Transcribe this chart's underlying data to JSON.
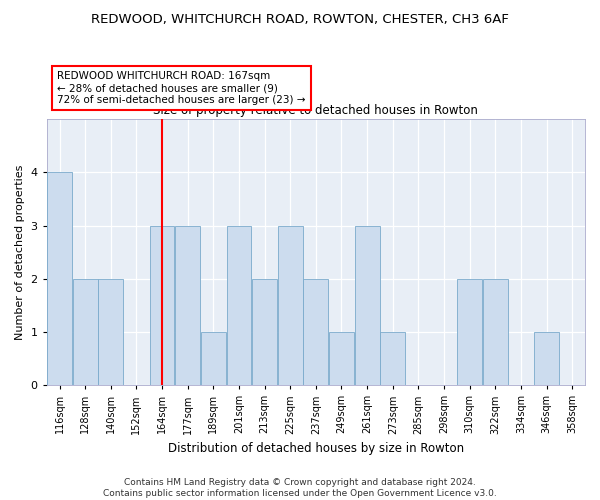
{
  "title": "REDWOOD, WHITCHURCH ROAD, ROWTON, CHESTER, CH3 6AF",
  "subtitle": "Size of property relative to detached houses in Rowton",
  "xlabel": "Distribution of detached houses by size in Rowton",
  "ylabel": "Number of detached properties",
  "footer_line1": "Contains HM Land Registry data © Crown copyright and database right 2024.",
  "footer_line2": "Contains public sector information licensed under the Open Government Licence v3.0.",
  "bin_labels": [
    "116sqm",
    "128sqm",
    "140sqm",
    "152sqm",
    "164sqm",
    "177sqm",
    "189sqm",
    "201sqm",
    "213sqm",
    "225sqm",
    "237sqm",
    "249sqm",
    "261sqm",
    "273sqm",
    "285sqm",
    "298sqm",
    "310sqm",
    "322sqm",
    "334sqm",
    "346sqm",
    "358sqm"
  ],
  "bar_values": [
    4,
    2,
    2,
    0,
    3,
    3,
    1,
    3,
    2,
    3,
    2,
    1,
    3,
    1,
    0,
    0,
    2,
    2,
    0,
    1,
    0
  ],
  "bar_color": "#ccdcee",
  "bar_edge_color": "#7aaacb",
  "reference_line_index": 4,
  "reference_line_color": "red",
  "ylim": [
    0,
    5
  ],
  "yticks": [
    0,
    1,
    2,
    3,
    4,
    5
  ],
  "annotation_line1": "REDWOOD WHITCHURCH ROAD: 167sqm",
  "annotation_line2": "← 28% of detached houses are smaller (9)",
  "annotation_line3": "72% of semi-detached houses are larger (23) →",
  "title_fontsize": 9.5,
  "subtitle_fontsize": 8.5,
  "xlabel_fontsize": 8.5,
  "ylabel_fontsize": 8,
  "tick_fontsize": 7,
  "footer_fontsize": 6.5,
  "annotation_font_size": 7.5
}
